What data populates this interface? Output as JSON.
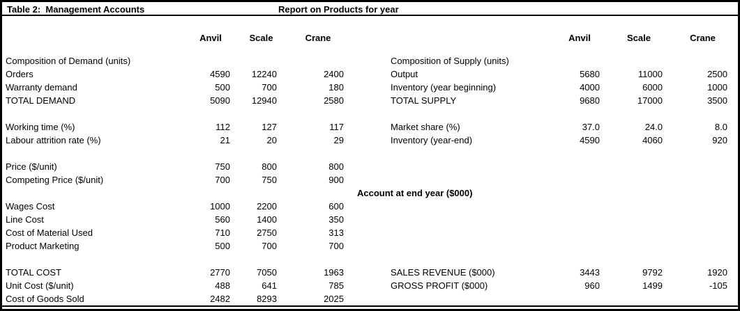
{
  "header": {
    "title": "Table 2:  Management Accounts",
    "subtitle": "Report on Products for year"
  },
  "column_headers": {
    "left": [
      "Anvil",
      "Scale",
      "Crane"
    ],
    "right": [
      "Anvil",
      "Scale",
      "Crane"
    ]
  },
  "account_section_header": "Account at end year ($000)",
  "colors": {
    "text": "#000000",
    "background": "#ffffff",
    "border": "#000000"
  },
  "rows": [
    {
      "l": "Composition of Demand (units)",
      "r": "Composition of Supply (units)"
    },
    {
      "l": "Orders",
      "lv": [
        "4590",
        "12240",
        "2400"
      ],
      "r": "Output",
      "rv": [
        "5680",
        "11000",
        "2500"
      ]
    },
    {
      "l": "Warranty demand",
      "lv": [
        "500",
        "700",
        "180"
      ],
      "r": "Inventory (year beginning)",
      "rv": [
        "4000",
        "6000",
        "1000"
      ]
    },
    {
      "l": "TOTAL DEMAND",
      "lv": [
        "5090",
        "12940",
        "2580"
      ],
      "r": "TOTAL SUPPLY",
      "rv": [
        "9680",
        "17000",
        "3500"
      ]
    },
    {
      "l": ""
    },
    {
      "l": "Working time (%)",
      "lv": [
        "112",
        "127",
        "117"
      ],
      "r": "Market share (%)",
      "rv": [
        "37.0",
        "24.0",
        "8.0"
      ]
    },
    {
      "l": "Labour attrition rate (%)",
      "lv": [
        "21",
        "20",
        "29"
      ],
      "r": "Inventory (year-end)",
      "rv": [
        "4590",
        "4060",
        "920"
      ]
    },
    {
      "l": ""
    },
    {
      "l": "Price ($/unit)",
      "lv": [
        "750",
        "800",
        "800"
      ]
    },
    {
      "l": "Competing Price ($/unit)",
      "lv": [
        "700",
        "750",
        "900"
      ]
    },
    {
      "l": ""
    },
    {
      "l": "Wages Cost",
      "lv": [
        "1000",
        "2200",
        "600"
      ]
    },
    {
      "l": "Line Cost",
      "lv": [
        "560",
        "1400",
        "350"
      ]
    },
    {
      "l": "Cost of Material Used",
      "lv": [
        "710",
        "2750",
        "313"
      ]
    },
    {
      "l": "Product Marketing",
      "lv": [
        "500",
        "700",
        "700"
      ]
    },
    {
      "l": ""
    },
    {
      "l": "TOTAL COST",
      "lv": [
        "2770",
        "7050",
        "1963"
      ],
      "r": "SALES REVENUE ($000)",
      "rv": [
        "3443",
        "9792",
        "1920"
      ]
    },
    {
      "l": "Unit Cost ($/unit)",
      "lv": [
        "488",
        "641",
        "785"
      ],
      "r": "GROSS PROFIT ($000)",
      "rv": [
        "960",
        "1499",
        "-105"
      ]
    },
    {
      "l": "Cost of Goods Sold",
      "lv": [
        "2482",
        "8293",
        "2025"
      ]
    }
  ]
}
